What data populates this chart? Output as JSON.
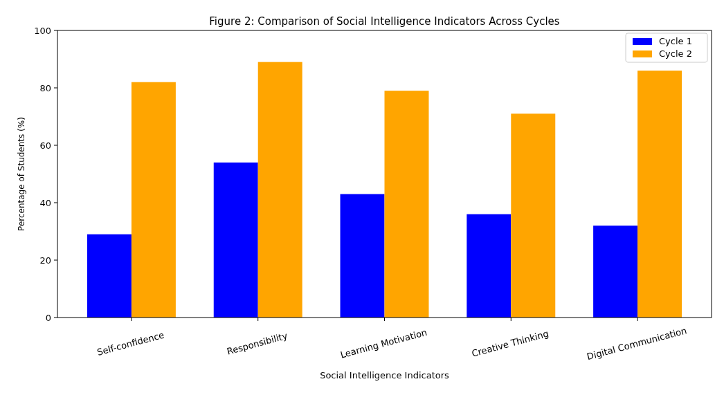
{
  "chart_data": {
    "type": "bar",
    "title": "Figure 2: Comparison of Social Intelligence Indicators Across Cycles",
    "xlabel": "Social Intelligence Indicators",
    "ylabel": "Percentage of Students (%)",
    "categories": [
      "Self-confidence",
      "Responsibility",
      "Learning Motivation",
      "Creative Thinking",
      "Digital Communication"
    ],
    "series": [
      {
        "name": "Cycle 1",
        "color": "#0000ff",
        "values": [
          29,
          54,
          43,
          36,
          32
        ]
      },
      {
        "name": "Cycle 2",
        "color": "#ffa500",
        "values": [
          82,
          89,
          79,
          71,
          86
        ]
      }
    ],
    "ylim": [
      0,
      100
    ],
    "yticks": [
      0,
      20,
      40,
      60,
      80,
      100
    ],
    "legend": "top right",
    "grid": false
  }
}
